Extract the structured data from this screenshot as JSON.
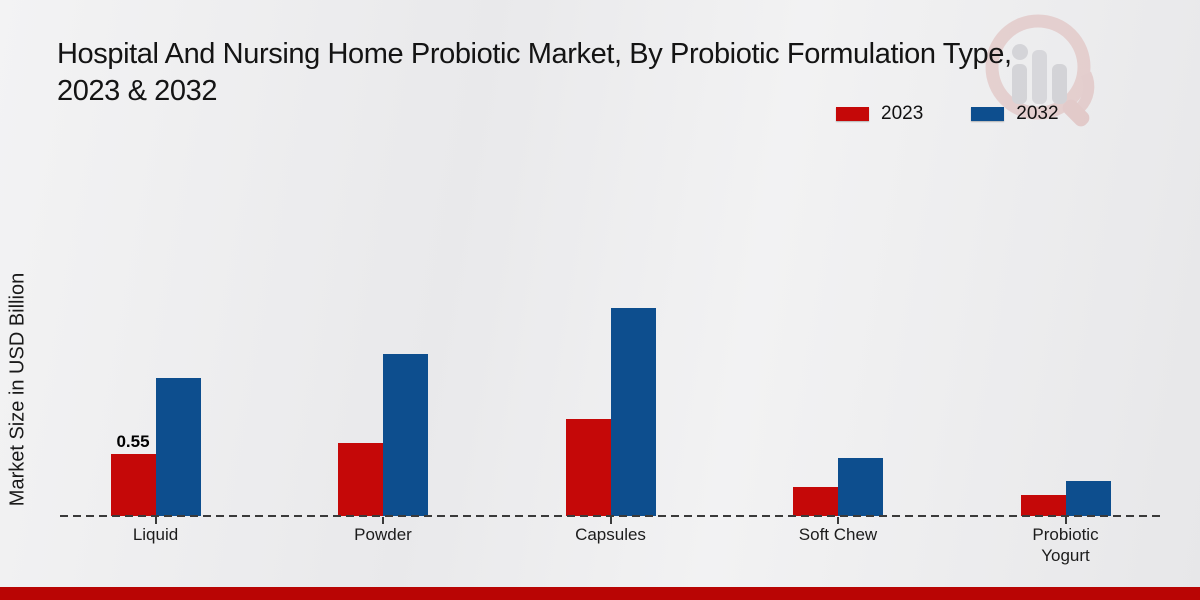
{
  "page": {
    "title_line1": "Hospital And Nursing Home Probiotic Market, By Probiotic Formulation Type,",
    "title_line2": "2023 & 2032"
  },
  "legend": {
    "items": [
      {
        "label": "2023",
        "color": "#c50808"
      },
      {
        "label": "2032",
        "color": "#0d4e8e"
      }
    ]
  },
  "chart_data": {
    "type": "bar",
    "title": "Hospital And Nursing Home Probiotic Market, By Probiotic Formulation Type, 2023 & 2032",
    "ylabel": "Market Size in USD Billion",
    "xlabel": "",
    "categories": [
      "Liquid",
      "Powder",
      "Capsules",
      "Soft Chew",
      "Probiotic Yogurt"
    ],
    "series": [
      {
        "name": "2023",
        "color": "#c50808",
        "values": [
          0.55,
          0.65,
          0.87,
          0.26,
          0.19
        ]
      },
      {
        "name": "2032",
        "color": "#0d4e8e",
        "values": [
          1.23,
          1.45,
          1.86,
          0.52,
          0.31
        ]
      }
    ],
    "bar_labels": [
      {
        "series": "2023",
        "category": "Liquid",
        "text": "0.55"
      }
    ],
    "ylim": [
      0,
      2.0
    ],
    "grid": false,
    "legend_position": "top-right",
    "baseline_style": "dashed"
  },
  "footer": {
    "color": "#b90504"
  },
  "watermark": {
    "name": "market-research-future-logo"
  }
}
